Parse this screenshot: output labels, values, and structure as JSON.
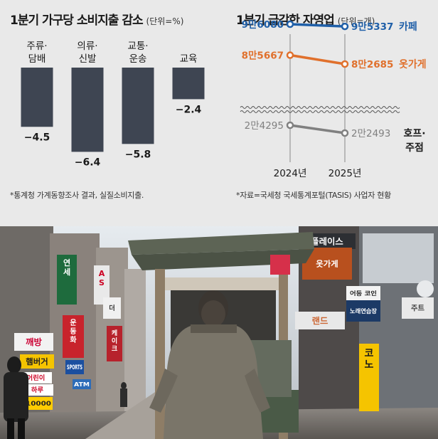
{
  "left_panel": {
    "title": "1분기 가구당 소비지출 감소",
    "unit": "(단위=%)",
    "footnote": "*통계청 가계동향조사 결과, 실질소비지출."
  },
  "right_panel": {
    "title": "1분기 급감한 자영업",
    "unit": "(단위=개)",
    "footnote": "*자료=국세청 국세통계포털(TASIS) 사업자 현황"
  },
  "colors": {
    "bar": "#3e4552",
    "cafe": "#1f5fa8",
    "clothing": "#e0702c",
    "pub": "#808080"
  },
  "chart_data": [
    {
      "type": "bar",
      "categories": [
        "주류·담배",
        "의류·신발",
        "교통·운송",
        "교육"
      ],
      "values": [
        -4.5,
        -6.4,
        -5.8,
        -2.4
      ],
      "value_labels": [
        "−4.5",
        "−6.4",
        "−5.8",
        "−2.4"
      ],
      "title": "1분기 가구당 소비지출 감소",
      "ylabel": "단위=%",
      "ylim": [
        -7,
        0
      ]
    },
    {
      "type": "line",
      "x": [
        "2024년",
        "2025년"
      ],
      "axis_break": true,
      "series": [
        {
          "name": "카페",
          "values": [
            96080,
            95337
          ],
          "labels": [
            "9만6080",
            "9만5337"
          ]
        },
        {
          "name": "옷가게",
          "values": [
            85667,
            82685
          ],
          "labels": [
            "8만5667",
            "8만2685"
          ]
        },
        {
          "name": "호프·주점",
          "values": [
            24295,
            22493
          ],
          "labels": [
            "2만4295",
            "2만2493"
          ]
        }
      ],
      "title": "1분기 급감한 자영업",
      "ylabel": "단위=개"
    }
  ],
  "photo": {
    "signs": [
      "플레이스",
      "연세",
      "AS",
      "운동화",
      "SPORTS",
      "깨방",
      "햄버거",
      "케이크",
      "더",
      "ATM",
      "어린이",
      "하루",
      "10000",
      "노래연습장",
      "어둥 코인",
      "코노",
      "랜드",
      "옷가게",
      "주트"
    ]
  }
}
